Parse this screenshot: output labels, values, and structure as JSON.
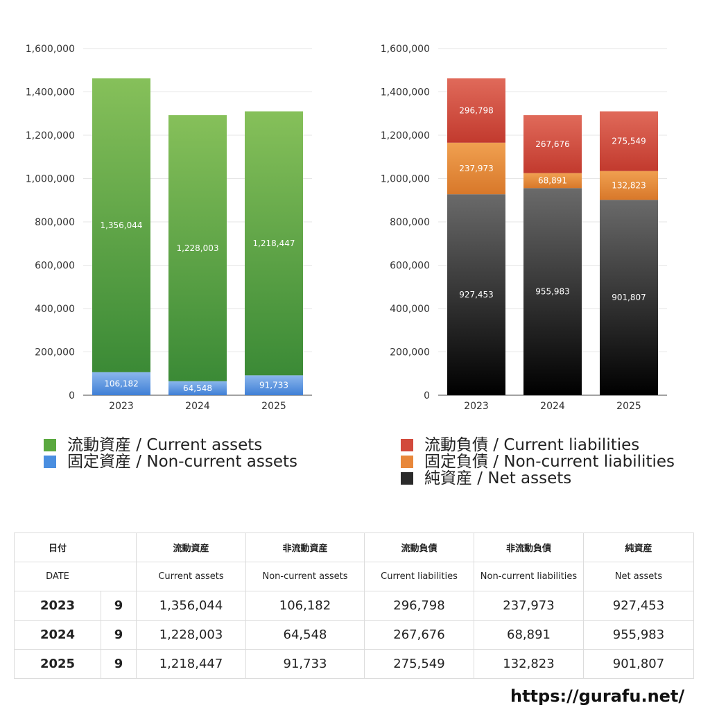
{
  "chart_data": [
    {
      "type": "bar",
      "stacked": true,
      "categories": [
        "2023",
        "2024",
        "2025"
      ],
      "ylim": [
        0,
        1600000
      ],
      "yticks": [
        "0",
        "200,000",
        "400,000",
        "600,000",
        "800,000",
        "1,000,000",
        "1,200,000",
        "1,400,000",
        "1,600,000"
      ],
      "grid": true,
      "legend_position": "bottom",
      "series": [
        {
          "name": "固定資産 / Non-current assets",
          "values": [
            106182,
            64548,
            91733
          ],
          "labels": [
            "106,182",
            "64,548",
            "91,733"
          ],
          "colors": [
            "#8ab6ec",
            "#3f7fd6"
          ]
        },
        {
          "name": "流動資産 / Current assets",
          "values": [
            1356044,
            1228003,
            1218447
          ],
          "labels": [
            "1,356,044",
            "1,228,003",
            "1,218,447"
          ],
          "colors": [
            "#86c05a",
            "#3b8a36"
          ]
        }
      ]
    },
    {
      "type": "bar",
      "stacked": true,
      "categories": [
        "2023",
        "2024",
        "2025"
      ],
      "ylim": [
        0,
        1600000
      ],
      "yticks": [
        "0",
        "200,000",
        "400,000",
        "600,000",
        "800,000",
        "1,000,000",
        "1,200,000",
        "1,400,000",
        "1,600,000"
      ],
      "grid": true,
      "legend_position": "bottom",
      "series": [
        {
          "name": "純資産 / Net assets",
          "values": [
            927453,
            955983,
            901807
          ],
          "labels": [
            "927,453",
            "955,983",
            "901,807"
          ],
          "colors": [
            "#6a6a6a",
            "#000000"
          ]
        },
        {
          "name": "固定負債 / Non-current liabilities",
          "values": [
            237973,
            68891,
            132823
          ],
          "labels": [
            "237,973",
            "68,891",
            "132,823"
          ],
          "colors": [
            "#f0a050",
            "#d8782a"
          ]
        },
        {
          "name": "流動負債 / Current liabilities",
          "values": [
            296798,
            267676,
            275549
          ],
          "labels": [
            "296,798",
            "267,676",
            "275,549"
          ],
          "colors": [
            "#e06a5a",
            "#c23a2e"
          ]
        }
      ]
    }
  ],
  "legend_assets": [
    {
      "label": "流動資産 / Current assets",
      "color": "#5aa83f"
    },
    {
      "label": "固定資産 / Non-current assets",
      "color": "#4a8ee0"
    }
  ],
  "legend_liab": [
    {
      "label": "流動負債 / Current liabilities",
      "color": "#d24a3c"
    },
    {
      "label": "固定負債 / Non-current liabilities",
      "color": "#e8873a"
    },
    {
      "label": "純資産 / Net assets",
      "color": "#2a2a2a"
    }
  ],
  "table": {
    "header_ja": [
      "日付",
      "流動資産",
      "非流動資産",
      "流動負債",
      "非流動負債",
      "純資産"
    ],
    "header_en": [
      "DATE",
      "Current assets",
      "Non-current assets",
      "Current liabilities",
      "Non-current liabilities",
      "Net assets"
    ],
    "rows": [
      {
        "year": "2023",
        "month": "9",
        "values": [
          "1,356,044",
          "106,182",
          "296,798",
          "237,973",
          "927,453"
        ]
      },
      {
        "year": "2024",
        "month": "9",
        "values": [
          "1,228,003",
          "64,548",
          "267,676",
          "68,891",
          "955,983"
        ]
      },
      {
        "year": "2025",
        "month": "9",
        "values": [
          "1,218,447",
          "91,733",
          "275,549",
          "132,823",
          "901,807"
        ]
      }
    ]
  },
  "footer": {
    "url": "https://gurafu.net/"
  }
}
